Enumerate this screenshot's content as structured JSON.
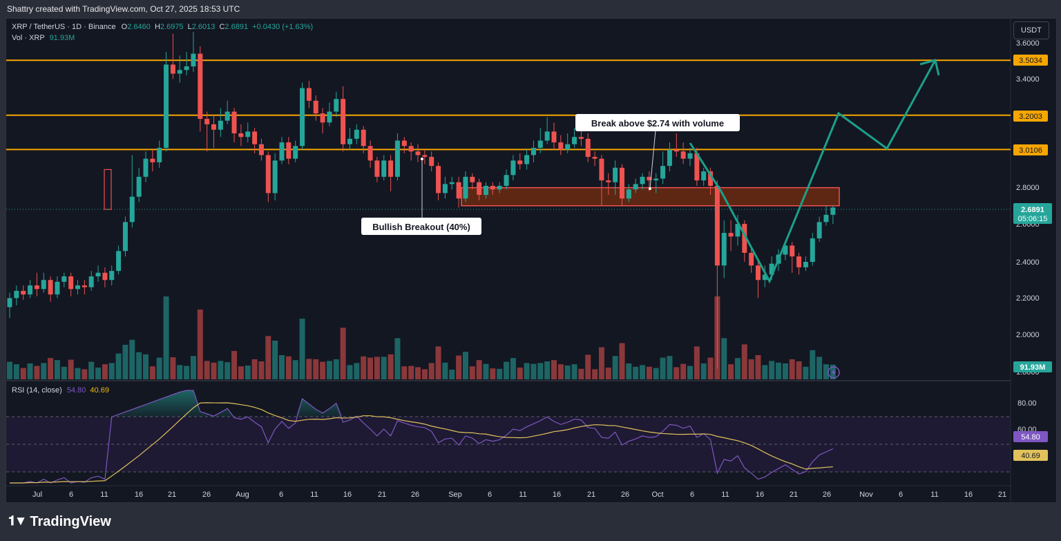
{
  "caption": "Shattry created with TradingView.com, Oct 27, 2025 18:53 UTC",
  "legend": {
    "symbol": "XRP / TetherUS · 1D · Binance",
    "o_label": "O",
    "o": "2.6460",
    "h_label": "H",
    "h": "2.6975",
    "l_label": "L",
    "l": "2.6013",
    "c_label": "C",
    "c": "2.6891",
    "change": "+0.0430 (+1.63%)",
    "vol_label": "Vol · XRP",
    "vol": "91.93M"
  },
  "currency": "USDT",
  "price_axis": {
    "ticks": [
      "3.6000",
      "3.4000",
      "2.8000",
      "2.6000",
      "2.4000",
      "2.2000",
      "2.0000",
      "1.8000"
    ],
    "levels": [
      "3.5034",
      "3.2003",
      "3.0106"
    ],
    "last_price": "2.6891",
    "countdown": "05:06:15",
    "volume_tag": "91.93M"
  },
  "annotations": {
    "callout1": "Break above $2.74 with volume",
    "callout2": "Bullish Breakout (40%)"
  },
  "rsi": {
    "label": "RSI (14, close)",
    "value1": "54.80",
    "value2": "40.69",
    "ticks": [
      "80.00",
      "60.00"
    ]
  },
  "time_axis": [
    "Jul",
    "6",
    "11",
    "16",
    "21",
    "26",
    "Aug",
    "6",
    "11",
    "16",
    "21",
    "26",
    "Sep",
    "6",
    "11",
    "16",
    "21",
    "26",
    "Oct",
    "6",
    "11",
    "16",
    "21",
    "26",
    "Nov",
    "6",
    "11",
    "16",
    "21"
  ],
  "branding": "TradingView",
  "colors": {
    "up": "#26a69a",
    "down": "#ef5350",
    "level": "#f7a600",
    "projection": "#1ba08a",
    "rsi_line": "#7e57c2",
    "rsi_ma": "#e2c25c",
    "zone_fill": "#6b2a12"
  },
  "chart_data": {
    "type": "candlestick",
    "y_axis_range": [
      1.8,
      3.6
    ],
    "x_range": [
      "2025-07-01",
      "2025-11-24"
    ],
    "levels": [
      3.5034,
      3.2003,
      3.0106
    ],
    "zone": [
      2.7,
      2.8
    ],
    "candles": [
      {
        "o": 2.14,
        "c": 2.19,
        "h": 2.22,
        "l": 2.08
      },
      {
        "o": 2.19,
        "c": 2.23,
        "h": 2.26,
        "l": 2.15
      },
      {
        "o": 2.23,
        "c": 2.21,
        "h": 2.26,
        "l": 2.18
      },
      {
        "o": 2.21,
        "c": 2.26,
        "h": 2.29,
        "l": 2.19
      },
      {
        "o": 2.26,
        "c": 2.24,
        "h": 2.33,
        "l": 2.2
      },
      {
        "o": 2.24,
        "c": 2.29,
        "h": 2.33,
        "l": 2.22
      },
      {
        "o": 2.29,
        "c": 2.21,
        "h": 2.31,
        "l": 2.17
      },
      {
        "o": 2.21,
        "c": 2.28,
        "h": 2.31,
        "l": 2.19
      },
      {
        "o": 2.28,
        "c": 2.31,
        "h": 2.33,
        "l": 2.25
      },
      {
        "o": 2.31,
        "c": 2.24,
        "h": 2.33,
        "l": 2.2
      },
      {
        "o": 2.24,
        "c": 2.26,
        "h": 2.29,
        "l": 2.21
      },
      {
        "o": 2.26,
        "c": 2.25,
        "h": 2.29,
        "l": 2.21
      },
      {
        "o": 2.25,
        "c": 2.31,
        "h": 2.34,
        "l": 2.23
      },
      {
        "o": 2.31,
        "c": 2.33,
        "h": 2.37,
        "l": 2.28
      },
      {
        "o": 2.33,
        "c": 2.29,
        "h": 2.36,
        "l": 2.25
      },
      {
        "o": 2.29,
        "c": 2.34,
        "h": 2.37,
        "l": 2.26
      },
      {
        "o": 2.34,
        "c": 2.45,
        "h": 2.48,
        "l": 2.32
      },
      {
        "o": 2.45,
        "c": 2.61,
        "h": 2.64,
        "l": 2.42
      },
      {
        "o": 2.61,
        "c": 2.75,
        "h": 2.98,
        "l": 2.58
      },
      {
        "o": 2.75,
        "c": 2.86,
        "h": 2.91,
        "l": 2.72
      },
      {
        "o": 2.86,
        "c": 2.96,
        "h": 3.0,
        "l": 2.83
      },
      {
        "o": 2.96,
        "c": 2.94,
        "h": 3.01,
        "l": 2.89
      },
      {
        "o": 2.94,
        "c": 3.02,
        "h": 3.06,
        "l": 2.91
      },
      {
        "o": 3.02,
        "c": 3.48,
        "h": 3.55,
        "l": 3.0
      },
      {
        "o": 3.48,
        "c": 3.43,
        "h": 3.65,
        "l": 3.4
      },
      {
        "o": 3.43,
        "c": 3.45,
        "h": 3.53,
        "l": 3.38
      },
      {
        "o": 3.45,
        "c": 3.47,
        "h": 3.55,
        "l": 3.42
      },
      {
        "o": 3.47,
        "c": 3.54,
        "h": 3.66,
        "l": 3.44
      },
      {
        "o": 3.54,
        "c": 3.18,
        "h": 3.58,
        "l": 3.11
      },
      {
        "o": 3.18,
        "c": 3.15,
        "h": 3.22,
        "l": 3.0
      },
      {
        "o": 3.15,
        "c": 3.12,
        "h": 3.2,
        "l": 3.02
      },
      {
        "o": 3.12,
        "c": 3.17,
        "h": 3.24,
        "l": 3.08
      },
      {
        "o": 3.17,
        "c": 3.22,
        "h": 3.28,
        "l": 3.15
      },
      {
        "o": 3.22,
        "c": 3.1,
        "h": 3.24,
        "l": 3.05
      },
      {
        "o": 3.1,
        "c": 3.08,
        "h": 3.15,
        "l": 3.03
      },
      {
        "o": 3.08,
        "c": 3.11,
        "h": 3.16,
        "l": 3.05
      },
      {
        "o": 3.11,
        "c": 3.04,
        "h": 3.13,
        "l": 2.99
      },
      {
        "o": 3.04,
        "c": 2.98,
        "h": 3.07,
        "l": 2.95
      },
      {
        "o": 2.98,
        "c": 2.77,
        "h": 3.0,
        "l": 2.72
      },
      {
        "o": 2.77,
        "c": 2.95,
        "h": 2.99,
        "l": 2.73
      },
      {
        "o": 2.95,
        "c": 3.05,
        "h": 3.08,
        "l": 2.93
      },
      {
        "o": 3.05,
        "c": 2.96,
        "h": 3.08,
        "l": 2.93
      },
      {
        "o": 2.96,
        "c": 3.03,
        "h": 3.06,
        "l": 2.94
      },
      {
        "o": 3.03,
        "c": 3.35,
        "h": 3.38,
        "l": 3.01
      },
      {
        "o": 3.35,
        "c": 3.28,
        "h": 3.39,
        "l": 3.24
      },
      {
        "o": 3.28,
        "c": 3.21,
        "h": 3.31,
        "l": 3.17
      },
      {
        "o": 3.21,
        "c": 3.16,
        "h": 3.24,
        "l": 3.1
      },
      {
        "o": 3.16,
        "c": 3.22,
        "h": 3.27,
        "l": 3.14
      },
      {
        "o": 3.22,
        "c": 3.29,
        "h": 3.33,
        "l": 3.19
      },
      {
        "o": 3.29,
        "c": 3.04,
        "h": 3.36,
        "l": 3.0
      },
      {
        "o": 3.04,
        "c": 3.07,
        "h": 3.13,
        "l": 3.01
      },
      {
        "o": 3.07,
        "c": 3.12,
        "h": 3.15,
        "l": 3.04
      },
      {
        "o": 3.12,
        "c": 3.03,
        "h": 3.14,
        "l": 2.99
      },
      {
        "o": 3.03,
        "c": 2.95,
        "h": 3.06,
        "l": 2.91
      },
      {
        "o": 2.95,
        "c": 2.86,
        "h": 2.97,
        "l": 2.83
      },
      {
        "o": 2.86,
        "c": 2.95,
        "h": 2.98,
        "l": 2.84
      },
      {
        "o": 2.95,
        "c": 2.86,
        "h": 2.98,
        "l": 2.78
      },
      {
        "o": 2.86,
        "c": 3.06,
        "h": 3.1,
        "l": 2.84
      },
      {
        "o": 3.06,
        "c": 3.03,
        "h": 3.08,
        "l": 2.99
      },
      {
        "o": 3.03,
        "c": 3.0,
        "h": 3.05,
        "l": 2.95
      },
      {
        "o": 3.0,
        "c": 2.98,
        "h": 3.04,
        "l": 2.94
      },
      {
        "o": 2.98,
        "c": 2.97,
        "h": 3.01,
        "l": 2.93
      },
      {
        "o": 2.97,
        "c": 2.92,
        "h": 3.0,
        "l": 2.89
      },
      {
        "o": 2.92,
        "c": 2.77,
        "h": 2.94,
        "l": 2.73
      },
      {
        "o": 2.77,
        "c": 2.82,
        "h": 2.86,
        "l": 2.74
      },
      {
        "o": 2.82,
        "c": 2.83,
        "h": 2.86,
        "l": 2.79
      },
      {
        "o": 2.83,
        "c": 2.74,
        "h": 2.86,
        "l": 2.69
      },
      {
        "o": 2.74,
        "c": 2.86,
        "h": 2.89,
        "l": 2.72
      },
      {
        "o": 2.86,
        "c": 2.83,
        "h": 2.88,
        "l": 2.79
      },
      {
        "o": 2.83,
        "c": 2.76,
        "h": 2.85,
        "l": 2.73
      },
      {
        "o": 2.76,
        "c": 2.81,
        "h": 2.83,
        "l": 2.74
      },
      {
        "o": 2.81,
        "c": 2.79,
        "h": 2.83,
        "l": 2.76
      },
      {
        "o": 2.79,
        "c": 2.81,
        "h": 2.83,
        "l": 2.77
      },
      {
        "o": 2.81,
        "c": 2.87,
        "h": 2.9,
        "l": 2.79
      },
      {
        "o": 2.87,
        "c": 2.95,
        "h": 2.98,
        "l": 2.84
      },
      {
        "o": 2.95,
        "c": 2.93,
        "h": 2.99,
        "l": 2.9
      },
      {
        "o": 2.93,
        "c": 2.98,
        "h": 3.01,
        "l": 2.9
      },
      {
        "o": 2.98,
        "c": 3.02,
        "h": 3.06,
        "l": 2.94
      },
      {
        "o": 3.02,
        "c": 3.06,
        "h": 3.13,
        "l": 2.99
      },
      {
        "o": 3.06,
        "c": 3.11,
        "h": 3.19,
        "l": 3.04
      },
      {
        "o": 3.11,
        "c": 3.05,
        "h": 3.16,
        "l": 3.01
      },
      {
        "o": 3.05,
        "c": 3.01,
        "h": 3.09,
        "l": 2.98
      },
      {
        "o": 3.01,
        "c": 3.04,
        "h": 3.1,
        "l": 2.99
      },
      {
        "o": 3.04,
        "c": 3.08,
        "h": 3.13,
        "l": 3.02
      },
      {
        "o": 3.08,
        "c": 3.07,
        "h": 3.12,
        "l": 3.03
      },
      {
        "o": 3.07,
        "c": 2.97,
        "h": 3.1,
        "l": 2.94
      },
      {
        "o": 2.97,
        "c": 2.96,
        "h": 3.0,
        "l": 2.92
      },
      {
        "o": 2.96,
        "c": 2.84,
        "h": 2.98,
        "l": 2.7
      },
      {
        "o": 2.84,
        "c": 2.83,
        "h": 2.88,
        "l": 2.76
      },
      {
        "o": 2.83,
        "c": 2.91,
        "h": 2.95,
        "l": 2.76
      },
      {
        "o": 2.91,
        "c": 2.74,
        "h": 2.93,
        "l": 2.7
      },
      {
        "o": 2.74,
        "c": 2.79,
        "h": 2.82,
        "l": 2.72
      },
      {
        "o": 2.79,
        "c": 2.82,
        "h": 2.85,
        "l": 2.77
      },
      {
        "o": 2.82,
        "c": 2.86,
        "h": 2.88,
        "l": 2.79
      },
      {
        "o": 2.86,
        "c": 2.84,
        "h": 2.89,
        "l": 2.78
      },
      {
        "o": 2.84,
        "c": 2.85,
        "h": 2.88,
        "l": 2.77
      },
      {
        "o": 2.85,
        "c": 2.92,
        "h": 3.0,
        "l": 2.82
      },
      {
        "o": 2.92,
        "c": 3.01,
        "h": 3.05,
        "l": 2.89
      },
      {
        "o": 3.01,
        "c": 3.0,
        "h": 3.1,
        "l": 2.97
      },
      {
        "o": 3.0,
        "c": 2.96,
        "h": 3.05,
        "l": 2.93
      },
      {
        "o": 2.96,
        "c": 2.99,
        "h": 3.02,
        "l": 2.92
      },
      {
        "o": 2.99,
        "c": 2.84,
        "h": 3.02,
        "l": 2.81
      },
      {
        "o": 2.84,
        "c": 2.89,
        "h": 2.91,
        "l": 2.81
      },
      {
        "o": 2.89,
        "c": 2.81,
        "h": 2.91,
        "l": 2.76
      },
      {
        "o": 2.81,
        "c": 2.37,
        "h": 2.84,
        "l": 1.8
      },
      {
        "o": 2.37,
        "c": 2.55,
        "h": 2.62,
        "l": 2.3
      },
      {
        "o": 2.55,
        "c": 2.53,
        "h": 2.62,
        "l": 2.45
      },
      {
        "o": 2.53,
        "c": 2.6,
        "h": 2.65,
        "l": 2.48
      },
      {
        "o": 2.6,
        "c": 2.44,
        "h": 2.62,
        "l": 2.39
      },
      {
        "o": 2.44,
        "c": 2.37,
        "h": 2.47,
        "l": 2.33
      },
      {
        "o": 2.37,
        "c": 2.29,
        "h": 2.4,
        "l": 2.19
      },
      {
        "o": 2.29,
        "c": 2.32,
        "h": 2.37,
        "l": 2.25
      },
      {
        "o": 2.32,
        "c": 2.38,
        "h": 2.42,
        "l": 2.29
      },
      {
        "o": 2.38,
        "c": 2.43,
        "h": 2.46,
        "l": 2.34
      },
      {
        "o": 2.43,
        "c": 2.48,
        "h": 2.5,
        "l": 2.4
      },
      {
        "o": 2.48,
        "c": 2.42,
        "h": 2.5,
        "l": 2.33
      },
      {
        "o": 2.42,
        "c": 2.36,
        "h": 2.44,
        "l": 2.32
      },
      {
        "o": 2.36,
        "c": 2.39,
        "h": 2.42,
        "l": 2.34
      },
      {
        "o": 2.39,
        "c": 2.52,
        "h": 2.55,
        "l": 2.37
      },
      {
        "o": 2.52,
        "c": 2.61,
        "h": 2.64,
        "l": 2.5
      },
      {
        "o": 2.61,
        "c": 2.65,
        "h": 2.7,
        "l": 2.59
      },
      {
        "o": 2.65,
        "c": 2.69,
        "h": 2.7,
        "l": 2.6
      }
    ],
    "projection": [
      3.0,
      3.2,
      3.01,
      3.5
    ]
  }
}
